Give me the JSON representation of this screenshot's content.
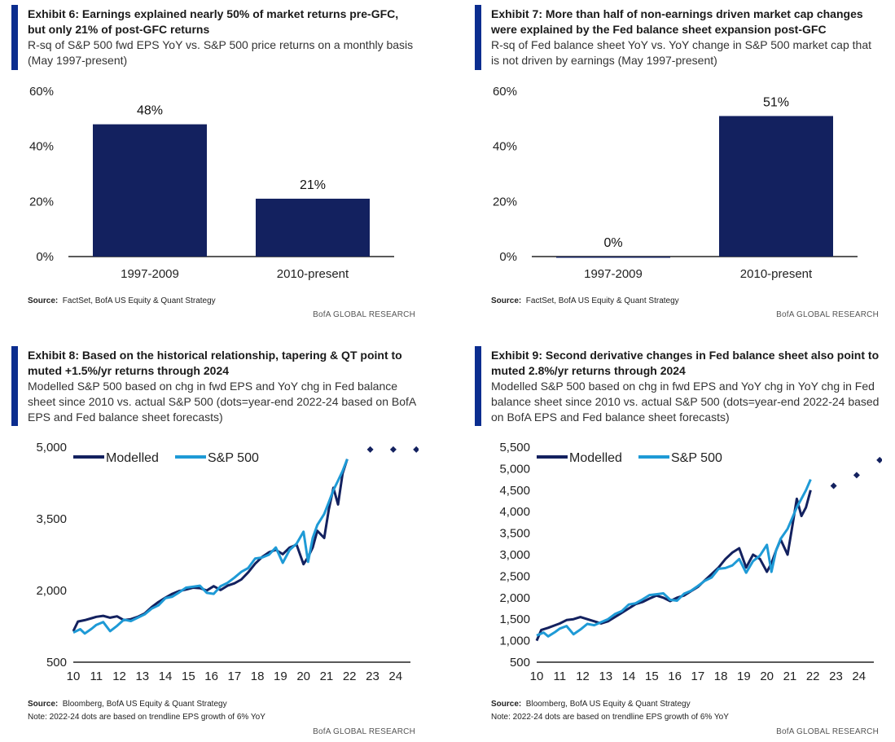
{
  "brand": "BofA GLOBAL RESEARCH",
  "colors": {
    "navy": "#13215f",
    "cyan": "#1e9ad6",
    "accent": "#0b2d8f",
    "axis": "#222222"
  },
  "exhibits": [
    {
      "title": "Exhibit 6: Earnings explained nearly 50% of market returns pre-GFC, but only 21% of post-GFC returns",
      "subtitle": "R-sq of S&P 500 fwd EPS YoY vs. S&P 500 price returns on a monthly basis (May 1997-present)",
      "source_label": "Source:",
      "source_text": "FactSet, BofA US Equity & Quant Strategy",
      "note": ""
    },
    {
      "title": "Exhibit 7: More than half of non-earnings driven market cap changes were explained by the Fed balance sheet expansion post-GFC",
      "subtitle": "R-sq of Fed balance sheet YoY vs. YoY change in S&P 500 market cap that is not driven by earnings (May 1997-present)",
      "source_label": "Source:",
      "source_text": "FactSet, BofA US Equity & Quant Strategy",
      "note": ""
    },
    {
      "title": "Exhibit 8: Based on the historical relationship, tapering & QT point to muted +1.5%/yr returns through 2024",
      "subtitle": "Modelled S&P 500 based on chg in fwd EPS and YoY chg in Fed balance sheet since 2010 vs. actual S&P 500 (dots=year-end 2022-24 based on BofA EPS and Fed balance sheet forecasts)",
      "source_label": "Source:",
      "source_text": "Bloomberg, BofA US Equity & Quant Strategy",
      "note": "Note: 2022-24  dots are based on trendline EPS growth of 6% YoY"
    },
    {
      "title": "Exhibit 9: Second derivative changes in Fed balance sheet also point to muted 2.8%/yr returns through 2024",
      "subtitle": "Modelled S&P 500 based on chg in fwd EPS and YoY chg in YoY chg in Fed balance sheet since 2010 vs. actual S&P 500 (dots=year-end 2022-24 based on BofA EPS and Fed balance sheet forecasts)",
      "source_label": "Source:",
      "source_text": "Bloomberg, BofA US Equity & Quant Strategy",
      "note": "Note: 2022-24  dots are based on trendline EPS growth of 6% YoY"
    }
  ],
  "chart_data": [
    {
      "type": "bar",
      "categories": [
        "1997-2009",
        "2010-present"
      ],
      "values": [
        48,
        21
      ],
      "value_labels": [
        "48%",
        "21%"
      ],
      "ylim": [
        0,
        60
      ],
      "yticks": [
        0,
        20,
        40,
        60
      ],
      "ytick_labels": [
        "0%",
        "20%",
        "40%",
        "60%"
      ],
      "color": "#13215f",
      "grid": false
    },
    {
      "type": "bar",
      "categories": [
        "1997-2009",
        "2010-present"
      ],
      "values": [
        0,
        51
      ],
      "value_labels": [
        "0%",
        "51%"
      ],
      "ylim": [
        0,
        60
      ],
      "yticks": [
        0,
        20,
        40,
        60
      ],
      "ytick_labels": [
        "0%",
        "20%",
        "40%",
        "60%"
      ],
      "color": "#13215f",
      "grid": false
    },
    {
      "type": "line",
      "xlim": [
        2010,
        2025
      ],
      "ylim": [
        500,
        5000
      ],
      "yticks": [
        500,
        2000,
        3500,
        5000
      ],
      "ytick_labels": [
        "500",
        "2,000",
        "3,500",
        "5,000"
      ],
      "xticks": [
        2010,
        2011,
        2012,
        2013,
        2014,
        2015,
        2016,
        2017,
        2018,
        2019,
        2020,
        2021,
        2022,
        2023,
        2024
      ],
      "xtick_labels": [
        "10",
        "11",
        "12",
        "13",
        "14",
        "15",
        "16",
        "17",
        "18",
        "19",
        "20",
        "21",
        "22",
        "23",
        "24"
      ],
      "legend_position": "top-left",
      "grid": false,
      "series": [
        {
          "name": "Modelled",
          "color": "#13215f",
          "x": [
            2010.0,
            2010.2,
            2010.5,
            2010.8,
            2011.0,
            2011.3,
            2011.6,
            2011.9,
            2012.2,
            2012.5,
            2012.8,
            2013.1,
            2013.4,
            2013.7,
            2014.0,
            2014.3,
            2014.6,
            2014.9,
            2015.2,
            2015.5,
            2015.8,
            2016.1,
            2016.4,
            2016.7,
            2017.0,
            2017.3,
            2017.6,
            2017.9,
            2018.2,
            2018.5,
            2018.8,
            2019.1,
            2019.4,
            2019.7,
            2020.0,
            2020.2,
            2020.4,
            2020.6,
            2020.9,
            2021.1,
            2021.3,
            2021.5,
            2021.7,
            2021.9
          ],
          "values": [
            1150,
            1350,
            1380,
            1420,
            1450,
            1470,
            1430,
            1460,
            1380,
            1400,
            1450,
            1520,
            1650,
            1760,
            1850,
            1930,
            1990,
            2020,
            2060,
            2050,
            2000,
            2090,
            2010,
            2100,
            2150,
            2230,
            2380,
            2560,
            2700,
            2800,
            2850,
            2760,
            2900,
            2960,
            2550,
            2700,
            2900,
            3250,
            3100,
            3700,
            4150,
            3800,
            4450,
            4750
          ]
        },
        {
          "name": "S&P 500",
          "color": "#1e9ad6",
          "x": [
            2010.0,
            2010.3,
            2010.5,
            2010.8,
            2011.0,
            2011.3,
            2011.6,
            2011.9,
            2012.2,
            2012.5,
            2012.8,
            2013.1,
            2013.4,
            2013.7,
            2014.0,
            2014.3,
            2014.6,
            2014.9,
            2015.2,
            2015.5,
            2015.8,
            2016.1,
            2016.4,
            2016.7,
            2017.0,
            2017.3,
            2017.6,
            2017.9,
            2018.2,
            2018.5,
            2018.8,
            2019.1,
            2019.4,
            2019.7,
            2020.0,
            2020.2,
            2020.4,
            2020.6,
            2020.9,
            2021.1,
            2021.3,
            2021.5,
            2021.7,
            2021.9
          ],
          "values": [
            1120,
            1190,
            1100,
            1200,
            1280,
            1340,
            1150,
            1260,
            1390,
            1360,
            1430,
            1500,
            1620,
            1690,
            1840,
            1870,
            1960,
            2060,
            2080,
            2100,
            1950,
            1930,
            2090,
            2160,
            2270,
            2390,
            2470,
            2670,
            2690,
            2750,
            2900,
            2580,
            2850,
            2980,
            3230,
            2600,
            3100,
            3370,
            3600,
            3850,
            4100,
            4300,
            4500,
            4750
          ]
        },
        {
          "name": "Year-end forecast dots",
          "color": "#13215f",
          "x": [
            2022.9,
            2023.9,
            2024.9
          ],
          "values": [
            4950,
            4950,
            4950
          ]
        }
      ]
    },
    {
      "type": "line",
      "xlim": [
        2010,
        2025
      ],
      "ylim": [
        500,
        5500
      ],
      "yticks": [
        500,
        1000,
        1500,
        2000,
        2500,
        3000,
        3500,
        4000,
        4500,
        5000,
        5500
      ],
      "ytick_labels": [
        "500",
        "1,000",
        "1,500",
        "2,000",
        "2,500",
        "3,000",
        "3,500",
        "4,000",
        "4,500",
        "5,000",
        "5,500"
      ],
      "xticks": [
        2010,
        2011,
        2012,
        2013,
        2014,
        2015,
        2016,
        2017,
        2018,
        2019,
        2020,
        2021,
        2022,
        2023,
        2024
      ],
      "xtick_labels": [
        "10",
        "11",
        "12",
        "13",
        "14",
        "15",
        "16",
        "17",
        "18",
        "19",
        "20",
        "21",
        "22",
        "23",
        "24"
      ],
      "legend_position": "top-left",
      "grid": false,
      "series": [
        {
          "name": "Modelled",
          "color": "#13215f",
          "x": [
            2010.0,
            2010.2,
            2010.5,
            2010.8,
            2011.0,
            2011.3,
            2011.6,
            2011.9,
            2012.2,
            2012.5,
            2012.8,
            2013.1,
            2013.4,
            2013.7,
            2014.0,
            2014.3,
            2014.6,
            2014.9,
            2015.2,
            2015.5,
            2015.8,
            2016.1,
            2016.4,
            2016.7,
            2017.0,
            2017.3,
            2017.6,
            2017.9,
            2018.2,
            2018.5,
            2018.8,
            2019.1,
            2019.4,
            2019.7,
            2020.0,
            2020.2,
            2020.4,
            2020.6,
            2020.9,
            2021.1,
            2021.3,
            2021.5,
            2021.7,
            2021.9
          ],
          "values": [
            1000,
            1250,
            1300,
            1360,
            1400,
            1480,
            1500,
            1550,
            1500,
            1450,
            1400,
            1450,
            1550,
            1650,
            1750,
            1850,
            1900,
            1980,
            2050,
            2000,
            1920,
            2000,
            2050,
            2150,
            2250,
            2400,
            2550,
            2700,
            2900,
            3050,
            3150,
            2700,
            3000,
            2900,
            2600,
            2800,
            3100,
            3350,
            3000,
            3650,
            4300,
            3900,
            4100,
            4500
          ]
        },
        {
          "name": "S&P 500",
          "color": "#1e9ad6",
          "x": [
            2010.0,
            2010.3,
            2010.5,
            2010.8,
            2011.0,
            2011.3,
            2011.6,
            2011.9,
            2012.2,
            2012.5,
            2012.8,
            2013.1,
            2013.4,
            2013.7,
            2014.0,
            2014.3,
            2014.6,
            2014.9,
            2015.2,
            2015.5,
            2015.8,
            2016.1,
            2016.4,
            2016.7,
            2017.0,
            2017.3,
            2017.6,
            2017.9,
            2018.2,
            2018.5,
            2018.8,
            2019.1,
            2019.4,
            2019.7,
            2020.0,
            2020.2,
            2020.4,
            2020.6,
            2020.9,
            2021.1,
            2021.3,
            2021.5,
            2021.7,
            2021.9
          ],
          "values": [
            1120,
            1190,
            1100,
            1200,
            1280,
            1340,
            1150,
            1260,
            1390,
            1360,
            1430,
            1500,
            1620,
            1690,
            1840,
            1870,
            1960,
            2060,
            2080,
            2100,
            1950,
            1930,
            2090,
            2160,
            2270,
            2390,
            2470,
            2670,
            2690,
            2750,
            2900,
            2580,
            2850,
            2980,
            3230,
            2600,
            3100,
            3370,
            3600,
            3850,
            4100,
            4300,
            4500,
            4750
          ]
        },
        {
          "name": "Year-end forecast dots",
          "color": "#13215f",
          "x": [
            2022.9,
            2023.9,
            2024.9
          ],
          "values": [
            4600,
            4850,
            5200
          ]
        }
      ]
    }
  ]
}
